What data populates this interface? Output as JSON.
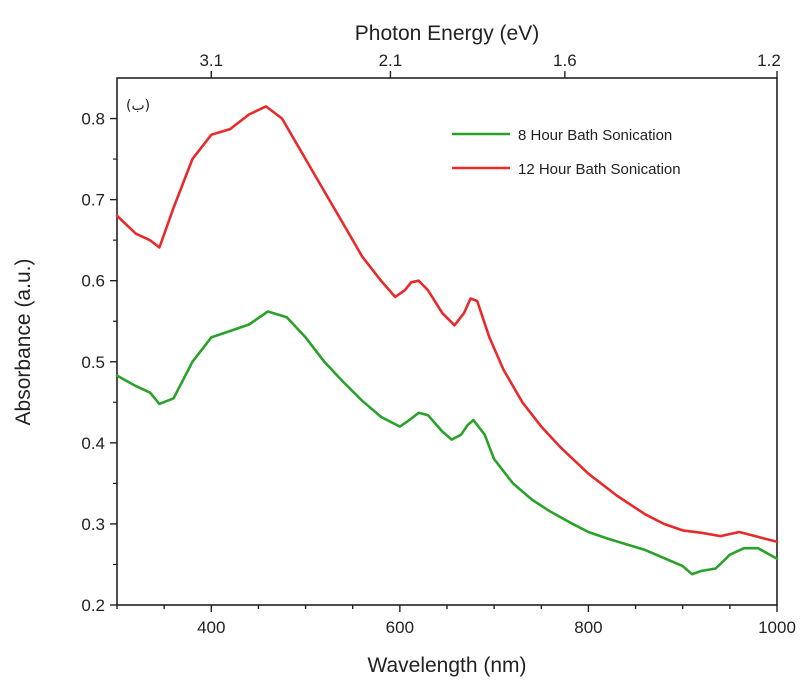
{
  "chart_data": {
    "type": "line",
    "xlabel": "Wavelength (nm)",
    "ylabel": "Absorbance (a.u.)",
    "top_xlabel": "Photon Energy (eV)",
    "panel_label": "(ب)",
    "xlim": [
      300,
      1000
    ],
    "ylim": [
      0.2,
      0.85
    ],
    "x_ticks": [
      400,
      600,
      800,
      1000
    ],
    "x_tick_labels": [
      "400",
      "600",
      "800",
      "1000"
    ],
    "y_ticks": [
      0.2,
      0.3,
      0.4,
      0.5,
      0.6,
      0.7,
      0.8
    ],
    "y_tick_labels": [
      "0.2",
      "0.3",
      "0.4",
      "0.5",
      "0.6",
      "0.7",
      "0.8"
    ],
    "top_ticks": [
      {
        "label": "3.1",
        "wavelength": 400
      },
      {
        "label": "2.1",
        "wavelength": 590
      },
      {
        "label": "1.6",
        "wavelength": 775
      },
      {
        "label": "1.2",
        "wavelength": 1000
      }
    ],
    "legend_position": "top-right",
    "series": [
      {
        "name": "8 Hour Bath Sonication",
        "color": "#2aa22a",
        "points": [
          [
            300,
            0.483
          ],
          [
            320,
            0.47
          ],
          [
            335,
            0.462
          ],
          [
            345,
            0.448
          ],
          [
            360,
            0.455
          ],
          [
            380,
            0.5
          ],
          [
            400,
            0.53
          ],
          [
            420,
            0.538
          ],
          [
            440,
            0.546
          ],
          [
            460,
            0.562
          ],
          [
            480,
            0.555
          ],
          [
            500,
            0.53
          ],
          [
            520,
            0.5
          ],
          [
            540,
            0.475
          ],
          [
            560,
            0.452
          ],
          [
            580,
            0.432
          ],
          [
            600,
            0.42
          ],
          [
            610,
            0.428
          ],
          [
            620,
            0.437
          ],
          [
            630,
            0.434
          ],
          [
            645,
            0.414
          ],
          [
            655,
            0.404
          ],
          [
            665,
            0.41
          ],
          [
            672,
            0.422
          ],
          [
            678,
            0.428
          ],
          [
            690,
            0.41
          ],
          [
            700,
            0.38
          ],
          [
            720,
            0.35
          ],
          [
            740,
            0.33
          ],
          [
            760,
            0.315
          ],
          [
            780,
            0.302
          ],
          [
            800,
            0.29
          ],
          [
            820,
            0.282
          ],
          [
            840,
            0.275
          ],
          [
            860,
            0.268
          ],
          [
            880,
            0.258
          ],
          [
            900,
            0.248
          ],
          [
            910,
            0.238
          ],
          [
            920,
            0.242
          ],
          [
            935,
            0.245
          ],
          [
            950,
            0.262
          ],
          [
            965,
            0.27
          ],
          [
            980,
            0.27
          ],
          [
            1000,
            0.257
          ]
        ]
      },
      {
        "name": "12 Hour Bath Sonication",
        "color": "#e82a2a",
        "points": [
          [
            300,
            0.68
          ],
          [
            320,
            0.658
          ],
          [
            335,
            0.65
          ],
          [
            345,
            0.641
          ],
          [
            360,
            0.69
          ],
          [
            380,
            0.75
          ],
          [
            400,
            0.78
          ],
          [
            420,
            0.787
          ],
          [
            440,
            0.805
          ],
          [
            458,
            0.815
          ],
          [
            475,
            0.8
          ],
          [
            500,
            0.75
          ],
          [
            520,
            0.71
          ],
          [
            540,
            0.67
          ],
          [
            560,
            0.63
          ],
          [
            580,
            0.6
          ],
          [
            595,
            0.58
          ],
          [
            605,
            0.588
          ],
          [
            612,
            0.598
          ],
          [
            620,
            0.6
          ],
          [
            630,
            0.588
          ],
          [
            645,
            0.56
          ],
          [
            658,
            0.545
          ],
          [
            668,
            0.56
          ],
          [
            675,
            0.578
          ],
          [
            682,
            0.575
          ],
          [
            695,
            0.53
          ],
          [
            710,
            0.49
          ],
          [
            730,
            0.45
          ],
          [
            750,
            0.42
          ],
          [
            770,
            0.395
          ],
          [
            800,
            0.362
          ],
          [
            830,
            0.335
          ],
          [
            860,
            0.312
          ],
          [
            880,
            0.3
          ],
          [
            900,
            0.292
          ],
          [
            920,
            0.289
          ],
          [
            940,
            0.285
          ],
          [
            960,
            0.29
          ],
          [
            980,
            0.284
          ],
          [
            1000,
            0.278
          ]
        ]
      }
    ]
  }
}
